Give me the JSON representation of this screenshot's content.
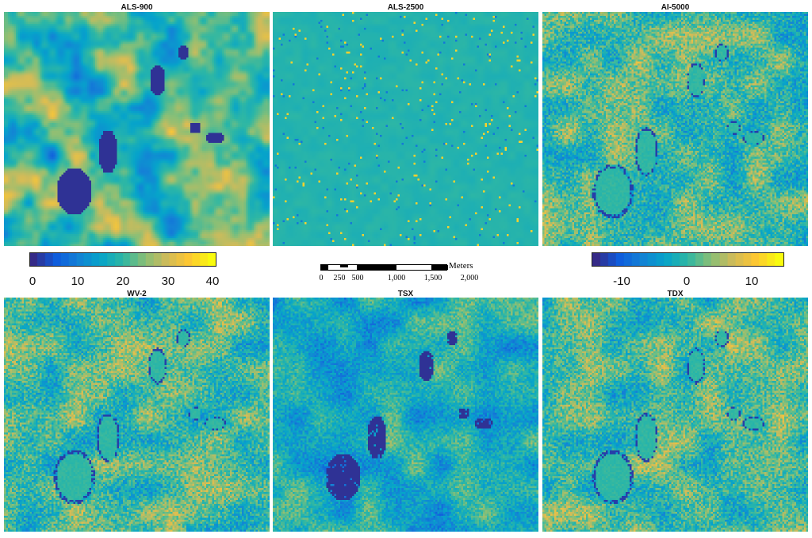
{
  "panels": [
    {
      "title": "ALS-900",
      "colorbar": "left",
      "style": "blob"
    },
    {
      "title": "ALS-2500",
      "colorbar": "left",
      "style": "flat"
    },
    {
      "title": "AI-5000",
      "colorbar": "right",
      "style": "noisy"
    },
    {
      "title": "WV-2",
      "colorbar": "right",
      "style": "noisy"
    },
    {
      "title": "TSX",
      "colorbar": "left",
      "style": "tsx"
    },
    {
      "title": "TDX",
      "colorbar": "right",
      "style": "noisy"
    }
  ],
  "colorbar_left": {
    "min": 0,
    "max": 40,
    "ticks": [
      "0",
      "10",
      "20",
      "30",
      "40"
    ],
    "tick_values": [
      0,
      10,
      20,
      30,
      40
    ]
  },
  "colorbar_right": {
    "min": -15,
    "max": 15,
    "ticks": [
      "-10",
      "0",
      "10"
    ],
    "tick_values": [
      -10,
      0,
      10
    ]
  },
  "scalebar": {
    "units": "Meters",
    "labels": [
      "0",
      "250",
      "500",
      "1,000",
      "1,500",
      "2,000"
    ],
    "values": [
      0,
      250,
      500,
      1000,
      1500,
      2000
    ]
  },
  "colors": {
    "colormap": [
      "#352a87",
      "#0f5cdd",
      "#1481d6",
      "#06a4ca",
      "#2eb7a4",
      "#87bf77",
      "#d1bb59",
      "#fec832",
      "#f9fb0e"
    ]
  }
}
